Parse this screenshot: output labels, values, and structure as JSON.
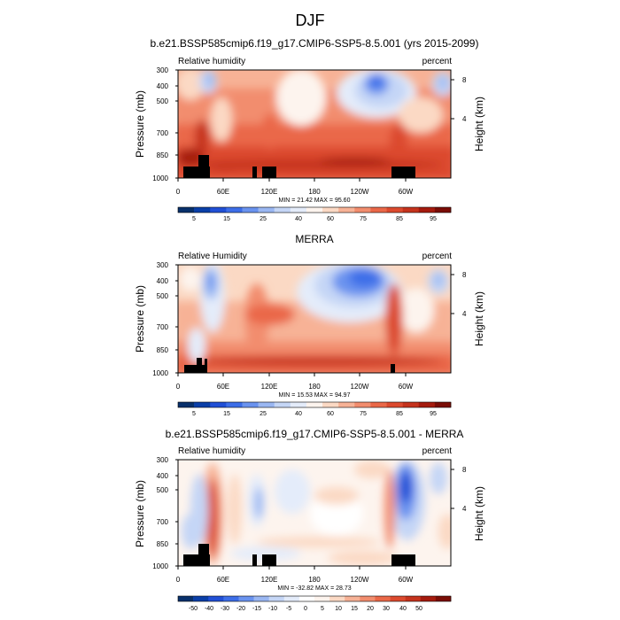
{
  "page_title": "DJF",
  "colors": {
    "ramp_div": [
      "#08306b",
      "#0a3fa8",
      "#2150d6",
      "#3d6ee8",
      "#6a93ef",
      "#9ab7f2",
      "#c5d6f6",
      "#e4ecfa",
      "#fdf4ee",
      "#fbd9c4",
      "#f7b296",
      "#f28d6e",
      "#ea6848",
      "#dc4a2e",
      "#c5331d",
      "#a51b0e",
      "#7a0d06"
    ],
    "ramp_div_sym": [
      "#08306b",
      "#0a3fa8",
      "#2150d6",
      "#3d6ee8",
      "#6a93ef",
      "#9ab7f2",
      "#c5d6f6",
      "#e4ecfa",
      "#ffffff",
      "#fdf4ee",
      "#fbd9c4",
      "#f7b296",
      "#f28d6e",
      "#ea6848",
      "#dc4a2e",
      "#c5331d",
      "#a51b0e",
      "#7a0d06"
    ],
    "terrain": "#000000"
  },
  "chart_data": [
    {
      "type": "heatmap",
      "title": "b.e21.BSSP585cmip6.f19_g17.CMIP6-SSP5-8.5.001 (yrs 2015-2099)",
      "left_label": "Relative humidity",
      "right_label": "percent",
      "ylabel": "Pressure (mb)",
      "y2label": "Height (km)",
      "x_ticks": [
        "0",
        "60E",
        "120E",
        "180",
        "120W",
        "60W"
      ],
      "y_ticks": [
        "300",
        "400",
        "500",
        "700",
        "850",
        "1000"
      ],
      "y2_ticks": [
        "8",
        "4"
      ],
      "stats": "MIN = 21.42  MAX = 95.60",
      "colorbar_ticks": [
        "5",
        "15",
        "25",
        "40",
        "60",
        "75",
        "85",
        "95"
      ],
      "colorbar_levels": [
        0,
        5,
        10,
        15,
        20,
        25,
        30,
        40,
        50,
        60,
        70,
        75,
        80,
        85,
        90,
        95,
        100
      ],
      "ylim": [
        1000,
        300
      ],
      "xlim": [
        0,
        360
      ]
    },
    {
      "type": "heatmap",
      "title": "MERRA",
      "left_label": "Relative Humidity",
      "right_label": "percent",
      "ylabel": "Pressure (mb)",
      "y2label": "Height (km)",
      "x_ticks": [
        "0",
        "60E",
        "120E",
        "180",
        "120W",
        "60W"
      ],
      "y_ticks": [
        "300",
        "400",
        "500",
        "700",
        "850",
        "1000"
      ],
      "y2_ticks": [
        "8",
        "4"
      ],
      "stats": "MIN = 15.53  MAX = 94.97",
      "colorbar_ticks": [
        "5",
        "15",
        "25",
        "40",
        "60",
        "75",
        "85",
        "95"
      ],
      "colorbar_levels": [
        0,
        5,
        10,
        15,
        20,
        25,
        30,
        40,
        50,
        60,
        70,
        75,
        80,
        85,
        90,
        95,
        100
      ],
      "ylim": [
        1000,
        300
      ],
      "xlim": [
        0,
        360
      ]
    },
    {
      "type": "heatmap",
      "title": "b.e21.BSSP585cmip6.f19_g17.CMIP6-SSP5-8.5.001 - MERRA",
      "left_label": "Relative humidity",
      "right_label": "percent",
      "ylabel": "Pressure (mb)",
      "y2label": "Height (km)",
      "x_ticks": [
        "0",
        "60E",
        "120E",
        "180",
        "120W",
        "60W"
      ],
      "y_ticks": [
        "300",
        "400",
        "500",
        "700",
        "850",
        "1000"
      ],
      "y2_ticks": [
        "8",
        "4"
      ],
      "stats": "MIN = -32.82  MAX = 28.73",
      "colorbar_ticks": [
        "-50",
        "-40",
        "-30",
        "-20",
        "-15",
        "-10",
        "-5",
        "0",
        "5",
        "10",
        "15",
        "20",
        "30",
        "40",
        "50"
      ],
      "colorbar_levels": [
        -60,
        -50,
        -40,
        -30,
        -20,
        -15,
        -10,
        -5,
        0,
        5,
        10,
        15,
        20,
        30,
        40,
        50,
        60
      ],
      "ylim": [
        1000,
        300
      ],
      "xlim": [
        0,
        360
      ]
    }
  ]
}
